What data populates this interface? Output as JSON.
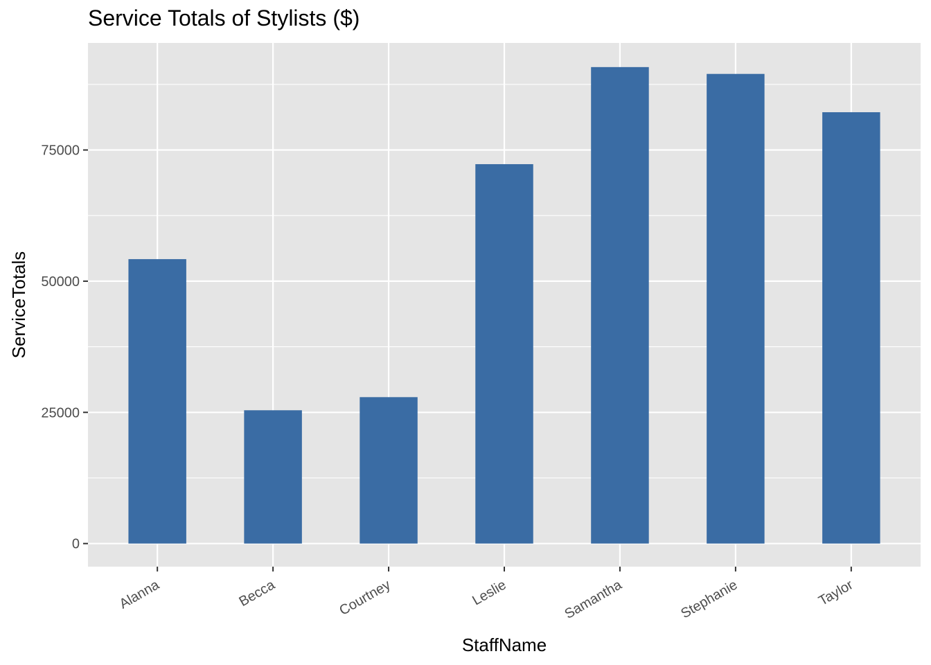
{
  "chart_data": {
    "type": "bar",
    "title": "Service Totals of Stylists ($)",
    "xlabel": "StaffName",
    "ylabel": "ServiceTotals",
    "categories": [
      "Alanna",
      "Becca",
      "Courtney",
      "Leslie",
      "Samantha",
      "Stephanie",
      "Taylor"
    ],
    "values": [
      54200,
      25400,
      27900,
      72300,
      90800,
      89500,
      82200
    ],
    "yticks": [
      0,
      25000,
      50000,
      75000
    ],
    "ylim": [
      -4400,
      95400
    ],
    "grid": true,
    "bar_color": "#3a6ca4",
    "panel_color": "#e5e5e5",
    "grid_color": "#ffffff"
  }
}
